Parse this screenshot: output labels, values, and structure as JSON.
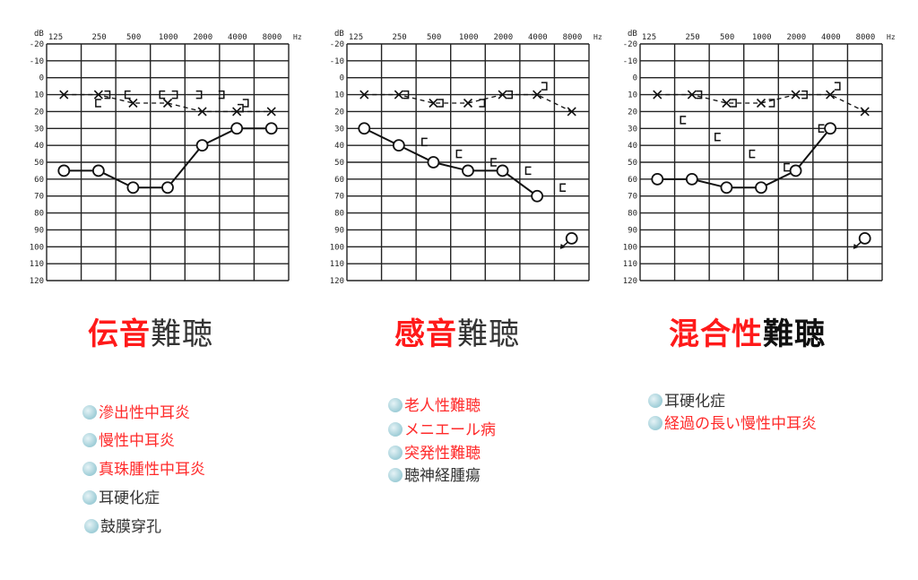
{
  "colors": {
    "red": "#ff2020",
    "dark": "#333333",
    "dot": "#a7d2db"
  },
  "axis": {
    "db_label": "dB",
    "hz_label": "Hz",
    "freqs": [
      "125",
      "250",
      "500",
      "1000",
      "2000",
      "4000",
      "8000"
    ],
    "levels": [
      "-20",
      "-10",
      "0",
      "10",
      "20",
      "30",
      "40",
      "50",
      "60",
      "70",
      "80",
      "90",
      "100",
      "110",
      "120"
    ]
  },
  "chart_data": [
    {
      "type": "line",
      "x": [
        "125",
        "250",
        "500",
        "1000",
        "2000",
        "4000",
        "8000"
      ],
      "ylim": [
        -20,
        120
      ],
      "y_inverted": true,
      "series": [
        {
          "marker": "o",
          "values": [
            55,
            55,
            65,
            65,
            40,
            30,
            30
          ]
        },
        {
          "marker": "x",
          "style": "dashed",
          "values": [
            10,
            10,
            15,
            15,
            20,
            20,
            20
          ]
        },
        {
          "marker": "[",
          "points": [
            [
              1,
              15
            ],
            [
              1.85,
              10
            ],
            [
              2.85,
              10
            ]
          ]
        },
        {
          "marker": "]",
          "points": [
            [
              1.25,
              10
            ],
            [
              3.2,
              10
            ],
            [
              3.9,
              10
            ],
            [
              4.55,
              10
            ],
            [
              5.1,
              18
            ],
            [
              5.25,
              15
            ]
          ]
        }
      ]
    },
    {
      "type": "line",
      "x": [
        "125",
        "250",
        "500",
        "1000",
        "2000",
        "4000",
        "8000"
      ],
      "ylim": [
        -20,
        120
      ],
      "y_inverted": true,
      "series": [
        {
          "marker": "o",
          "values": [
            30,
            40,
            50,
            55,
            55,
            70,
            null
          ]
        },
        {
          "marker": "o-scaleout",
          "points": [
            [
              6,
              95
            ]
          ]
        },
        {
          "marker": "x",
          "style": "dashed",
          "values": [
            10,
            10,
            15,
            15,
            10,
            10,
            20
          ]
        },
        {
          "marker": "[",
          "points": [
            [
              1.75,
              38
            ],
            [
              2.75,
              45
            ],
            [
              3.75,
              50
            ],
            [
              4.75,
              55
            ],
            [
              5.75,
              65
            ]
          ]
        },
        {
          "marker": "]",
          "points": [
            [
              1.2,
              10
            ],
            [
              2.2,
              15
            ],
            [
              3.4,
              15
            ],
            [
              4.2,
              10
            ],
            [
              5.2,
              5
            ]
          ]
        }
      ]
    },
    {
      "type": "line",
      "x": [
        "125",
        "250",
        "500",
        "1000",
        "2000",
        "4000",
        "8000"
      ],
      "ylim": [
        -20,
        120
      ],
      "y_inverted": true,
      "series": [
        {
          "marker": "o",
          "values": [
            60,
            60,
            65,
            65,
            55,
            30,
            null
          ]
        },
        {
          "marker": "o-scaleout",
          "points": [
            [
              6,
              95
            ]
          ]
        },
        {
          "marker": "x",
          "style": "dashed",
          "values": [
            10,
            10,
            15,
            15,
            10,
            10,
            20
          ]
        },
        {
          "marker": "[",
          "points": [
            [
              0.75,
              25
            ],
            [
              1.75,
              35
            ],
            [
              2.75,
              45
            ],
            [
              3.75,
              53
            ],
            [
              4.75,
              30
            ]
          ]
        },
        {
          "marker": "]",
          "points": [
            [
              1.2,
              10
            ],
            [
              2.2,
              15
            ],
            [
              3.3,
              15
            ],
            [
              4.25,
              10
            ],
            [
              5.2,
              5
            ]
          ]
        }
      ]
    }
  ],
  "panels": [
    {
      "title_red": "伝音",
      "title_dark": "難聴",
      "items": [
        {
          "text": "滲出性中耳炎",
          "color": "red"
        },
        {
          "text": "慢性中耳炎",
          "color": "red"
        },
        {
          "text": "真珠腫性中耳炎",
          "color": "red"
        },
        {
          "text": "耳硬化症",
          "color": "dark"
        },
        {
          "text": "鼓膜穿孔",
          "color": "dark"
        }
      ]
    },
    {
      "title_red": "感音",
      "title_dark": "難聴",
      "items": [
        {
          "text": "老人性難聴",
          "color": "red"
        },
        {
          "text": "メニエール病",
          "color": "red"
        },
        {
          "text": "突発性難聴",
          "color": "red"
        },
        {
          "text": "聴神経腫瘍",
          "color": "dark"
        }
      ]
    },
    {
      "title_red": "混合性",
      "title_dark": "難聴",
      "items": [
        {
          "text": "耳硬化症",
          "color": "dark"
        },
        {
          "text": "経過の長い慢性中耳炎",
          "color": "red"
        }
      ]
    }
  ]
}
